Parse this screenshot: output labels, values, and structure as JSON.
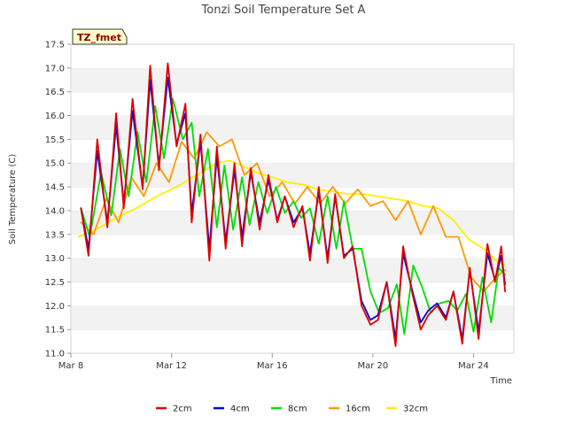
{
  "chart_data": {
    "type": "line",
    "title": "Tonzi Soil Temperature Set A",
    "xlabel": "Time",
    "ylabel": "Soil Temperature (C)",
    "badge": "TZ_fmet",
    "xlim": [
      0,
      17.6
    ],
    "ylim": [
      11.0,
      17.5
    ],
    "xticks": [
      {
        "value": 0,
        "label": "Mar 8"
      },
      {
        "value": 4,
        "label": "Mar 12"
      },
      {
        "value": 8,
        "label": "Mar 16"
      },
      {
        "value": 12,
        "label": "Mar 20"
      },
      {
        "value": 16,
        "label": "Mar 24"
      }
    ],
    "yticks": [
      11.0,
      11.5,
      12.0,
      12.5,
      13.0,
      13.5,
      14.0,
      14.5,
      15.0,
      15.5,
      16.0,
      16.5,
      17.0,
      17.5
    ],
    "grid": "horizontal alternating bands",
    "legend_position": "bottom",
    "series": [
      {
        "name": "2cm",
        "color": "#dd0000",
        "x": [
          0.4,
          0.7,
          1.05,
          1.45,
          1.8,
          2.1,
          2.45,
          2.85,
          3.15,
          3.5,
          3.85,
          4.2,
          4.55,
          4.8,
          5.15,
          5.5,
          5.8,
          6.15,
          6.5,
          6.8,
          7.15,
          7.5,
          7.85,
          8.2,
          8.5,
          8.85,
          9.2,
          9.5,
          9.85,
          10.2,
          10.5,
          10.85,
          11.2,
          11.55,
          11.9,
          12.2,
          12.55,
          12.9,
          13.2,
          13.55,
          13.9,
          14.2,
          14.55,
          14.9,
          15.2,
          15.55,
          15.85,
          16.2,
          16.55,
          16.85,
          17.1,
          17.25
        ],
        "y": [
          14.05,
          13.05,
          15.5,
          13.65,
          16.05,
          14.05,
          16.35,
          14.45,
          17.05,
          14.85,
          17.1,
          15.35,
          16.25,
          13.75,
          15.6,
          12.95,
          15.35,
          13.2,
          15.0,
          13.25,
          14.9,
          13.6,
          14.75,
          13.75,
          14.3,
          13.65,
          14.1,
          12.95,
          14.5,
          12.9,
          14.35,
          13.0,
          13.25,
          12.0,
          11.6,
          11.7,
          12.5,
          11.15,
          13.25,
          12.3,
          11.5,
          11.8,
          12.0,
          11.7,
          12.3,
          11.2,
          12.8,
          11.3,
          13.3,
          12.5,
          13.25,
          12.3
        ]
      },
      {
        "name": "4cm",
        "color": "#0000cc",
        "x": [
          0.4,
          0.7,
          1.05,
          1.45,
          1.8,
          2.1,
          2.45,
          2.85,
          3.15,
          3.5,
          3.85,
          4.2,
          4.55,
          4.8,
          5.15,
          5.5,
          5.8,
          6.15,
          6.5,
          6.8,
          7.15,
          7.5,
          7.85,
          8.2,
          8.5,
          8.85,
          9.2,
          9.5,
          9.85,
          10.2,
          10.5,
          10.85,
          11.2,
          11.55,
          11.9,
          12.2,
          12.55,
          12.9,
          13.2,
          13.55,
          13.9,
          14.2,
          14.55,
          14.9,
          15.2,
          15.55,
          15.85,
          16.2,
          16.55,
          16.85,
          17.1,
          17.25
        ],
        "y": [
          14.05,
          13.2,
          15.25,
          13.75,
          15.8,
          14.15,
          16.1,
          14.5,
          16.75,
          14.95,
          16.8,
          15.4,
          16.05,
          13.95,
          15.45,
          13.2,
          15.15,
          13.35,
          14.85,
          13.45,
          14.8,
          13.75,
          14.65,
          13.8,
          14.3,
          13.75,
          14.05,
          13.1,
          14.4,
          13.0,
          14.3,
          13.05,
          13.2,
          12.1,
          11.7,
          11.8,
          12.5,
          11.3,
          13.1,
          12.35,
          11.65,
          11.9,
          12.05,
          11.75,
          12.3,
          11.3,
          12.75,
          11.45,
          13.1,
          12.55,
          13.05,
          12.45
        ]
      },
      {
        "name": "8cm",
        "color": "#00dd00",
        "x": [
          0.4,
          0.75,
          1.2,
          1.6,
          1.95,
          2.3,
          2.65,
          3.0,
          3.35,
          3.7,
          4.05,
          4.45,
          4.8,
          5.1,
          5.45,
          5.8,
          6.1,
          6.45,
          6.8,
          7.1,
          7.45,
          7.8,
          8.15,
          8.5,
          8.85,
          9.15,
          9.5,
          9.85,
          10.2,
          10.55,
          10.85,
          11.2,
          11.55,
          11.9,
          12.25,
          12.6,
          12.95,
          13.25,
          13.6,
          13.95,
          14.3,
          14.65,
          15.0,
          15.35,
          15.7,
          16.0,
          16.35,
          16.7,
          17.0,
          17.25
        ],
        "y": [
          14.05,
          13.45,
          14.8,
          13.9,
          15.3,
          14.3,
          15.65,
          14.6,
          16.2,
          15.1,
          16.35,
          15.5,
          15.85,
          14.3,
          15.3,
          13.65,
          14.95,
          13.6,
          14.7,
          13.7,
          14.6,
          13.95,
          14.5,
          13.95,
          14.2,
          13.85,
          14.05,
          13.3,
          14.3,
          13.2,
          14.2,
          13.2,
          13.2,
          12.3,
          11.85,
          11.95,
          12.45,
          11.4,
          12.85,
          12.4,
          11.85,
          12.05,
          12.1,
          11.9,
          12.25,
          11.45,
          12.6,
          11.65,
          12.8,
          12.65
        ]
      },
      {
        "name": "16cm",
        "color": "#ff9900",
        "x": [
          0.4,
          0.9,
          1.4,
          1.9,
          2.4,
          2.9,
          3.4,
          3.9,
          4.4,
          4.9,
          5.4,
          5.9,
          6.4,
          6.9,
          7.4,
          7.9,
          8.4,
          8.9,
          9.4,
          9.9,
          10.4,
          10.9,
          11.4,
          11.9,
          12.4,
          12.9,
          13.4,
          13.9,
          14.4,
          14.9,
          15.4,
          15.9,
          16.4,
          16.9,
          17.25
        ],
        "y": [
          13.75,
          13.5,
          14.25,
          13.75,
          14.7,
          14.3,
          15.0,
          14.6,
          15.45,
          15.1,
          15.65,
          15.35,
          15.5,
          14.75,
          15.0,
          14.3,
          14.6,
          14.15,
          14.5,
          14.15,
          14.5,
          14.15,
          14.45,
          14.1,
          14.2,
          13.8,
          14.2,
          13.5,
          14.1,
          13.45,
          13.45,
          12.6,
          12.3,
          12.6,
          12.75
        ]
      },
      {
        "name": "32cm",
        "color": "#ffee00",
        "x": [
          0.3,
          1.0,
          1.8,
          2.6,
          3.4,
          4.2,
          5.0,
          5.8,
          6.3,
          6.8,
          7.4,
          8.0,
          8.6,
          9.2,
          9.8,
          10.4,
          11.0,
          11.6,
          12.2,
          12.8,
          13.4,
          14.0,
          14.6,
          15.2,
          15.8,
          16.4,
          16.9,
          17.25
        ],
        "y": [
          13.45,
          13.6,
          13.85,
          14.05,
          14.3,
          14.5,
          14.75,
          15.0,
          15.05,
          14.95,
          14.8,
          14.7,
          14.6,
          14.55,
          14.45,
          14.4,
          14.35,
          14.35,
          14.3,
          14.25,
          14.2,
          14.1,
          14.05,
          13.8,
          13.4,
          13.2,
          12.95,
          12.85
        ]
      }
    ]
  }
}
